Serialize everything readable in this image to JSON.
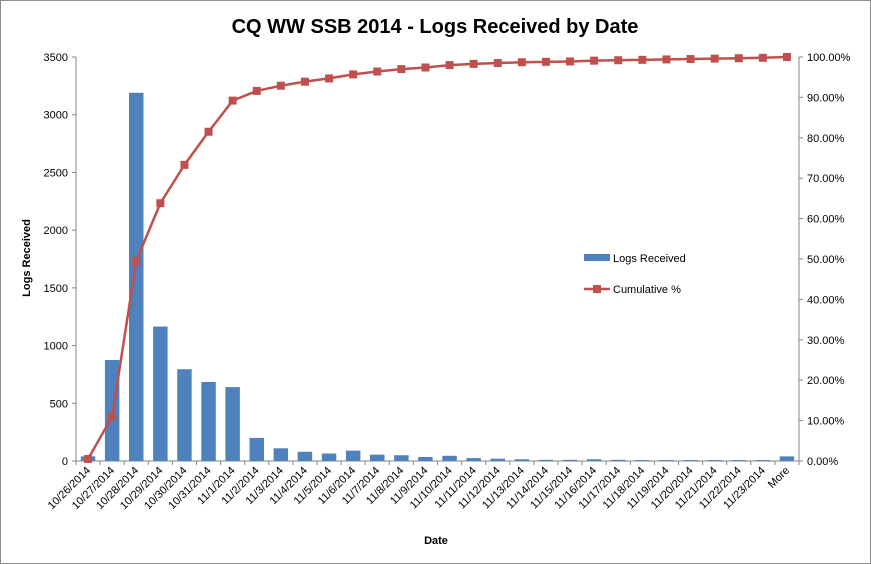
{
  "chart_data": {
    "type": "bar",
    "title": "CQ WW SSB 2014 - Logs Received by Date",
    "xlabel": "Date",
    "ylabel": "Logs Received",
    "ylim": [
      0,
      3500
    ],
    "y_ticks": [
      "0",
      "500",
      "1000",
      "1500",
      "2000",
      "2500",
      "3000",
      "3500"
    ],
    "y2lim": [
      0,
      100
    ],
    "y2_ticks": [
      "0.00%",
      "10.00%",
      "20.00%",
      "30.00%",
      "40.00%",
      "50.00%",
      "60.00%",
      "70.00%",
      "80.00%",
      "90.00%",
      "100.00%"
    ],
    "grid": false,
    "legend_position": "right",
    "categories": [
      "10/26/2014",
      "10/27/2014",
      "10/28/2014",
      "10/29/2014",
      "10/30/2014",
      "10/31/2014",
      "11/1/2014",
      "11/2/2014",
      "11/3/2014",
      "11/4/2014",
      "11/5/2014",
      "11/6/2014",
      "11/7/2014",
      "11/8/2014",
      "11/9/2014",
      "11/10/2014",
      "11/11/2014",
      "11/12/2014",
      "11/13/2014",
      "11/14/2014",
      "11/15/2014",
      "11/16/2014",
      "11/17/2014",
      "11/18/2014",
      "11/19/2014",
      "11/20/2014",
      "11/21/2014",
      "11/22/2014",
      "11/23/2014",
      "More"
    ],
    "series": [
      {
        "name": "Logs Received",
        "type": "bar",
        "axis": "left",
        "color": "#4f81bd",
        "values": [
          40,
          875,
          3190,
          1165,
          795,
          685,
          640,
          200,
          110,
          80,
          65,
          90,
          55,
          50,
          35,
          45,
          25,
          20,
          15,
          10,
          10,
          15,
          10,
          8,
          8,
          8,
          8,
          8,
          8,
          40
        ]
      },
      {
        "name": "Cumulative %",
        "type": "line",
        "axis": "right",
        "color": "#c0504d",
        "values": [
          0.5,
          11.0,
          49.5,
          63.8,
          73.3,
          81.5,
          89.2,
          91.6,
          92.9,
          93.9,
          94.7,
          95.7,
          96.4,
          97.0,
          97.4,
          98.0,
          98.3,
          98.5,
          98.7,
          98.8,
          98.9,
          99.1,
          99.2,
          99.3,
          99.4,
          99.5,
          99.6,
          99.7,
          99.8,
          100.0
        ]
      }
    ]
  }
}
